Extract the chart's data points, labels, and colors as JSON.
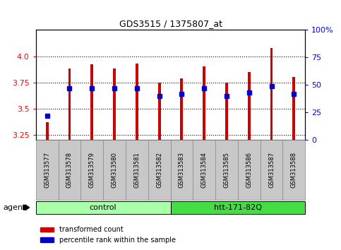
{
  "title": "GDS3515 / 1375807_at",
  "samples": [
    "GSM313577",
    "GSM313578",
    "GSM313579",
    "GSM313580",
    "GSM313581",
    "GSM313582",
    "GSM313583",
    "GSM313584",
    "GSM313585",
    "GSM313586",
    "GSM313587",
    "GSM313588"
  ],
  "red_values": [
    3.37,
    3.88,
    3.92,
    3.88,
    3.93,
    3.75,
    3.79,
    3.9,
    3.75,
    3.85,
    4.08,
    3.8
  ],
  "blue_percentile": [
    22,
    47,
    47,
    47,
    47,
    40,
    42,
    47,
    40,
    43,
    49,
    42
  ],
  "ylim_left": [
    3.2,
    4.25
  ],
  "ylim_right": [
    0,
    100
  ],
  "yticks_left": [
    3.25,
    3.5,
    3.75,
    4.0
  ],
  "yticks_right": [
    0,
    25,
    50,
    75,
    100
  ],
  "ytick_labels_right": [
    "0",
    "25",
    "50",
    "75",
    "100%"
  ],
  "groups": [
    {
      "label": "control",
      "start": 0,
      "end": 5,
      "color": "#AAFFAA"
    },
    {
      "label": "htt-171-82Q",
      "start": 6,
      "end": 11,
      "color": "#44DD44"
    }
  ],
  "agent_label": "agent",
  "bar_color_red": "#CC0000",
  "bar_color_blue": "#0000CC",
  "tick_bg_color": "#C8C8C8",
  "tick_border_color": "#888888",
  "legend_items": [
    {
      "label": "transformed count",
      "color": "#CC0000"
    },
    {
      "label": "percentile rank within the sample",
      "color": "#0000CC"
    }
  ],
  "plot_bg": "#FFFFFF"
}
